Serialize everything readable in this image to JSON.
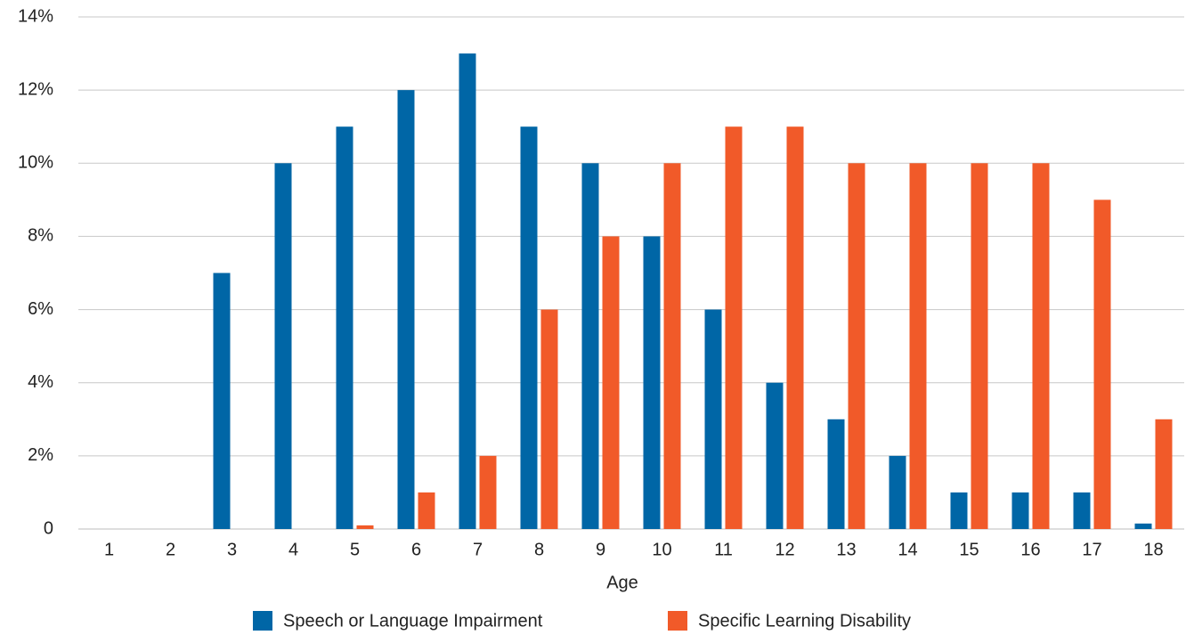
{
  "chart_data": {
    "type": "bar",
    "x_label": "Age",
    "categories": [
      "1",
      "2",
      "3",
      "4",
      "5",
      "6",
      "7",
      "8",
      "9",
      "10",
      "11",
      "12",
      "13",
      "14",
      "15",
      "16",
      "17",
      "18"
    ],
    "series": [
      {
        "name": "Speech or Language Impairment",
        "color": "#0066a6",
        "values": [
          0,
          0,
          7,
          10,
          11,
          12,
          13,
          11,
          10,
          8,
          6,
          4,
          3,
          2,
          1,
          1,
          1,
          0.15
        ]
      },
      {
        "name": "Specific Learning Disability",
        "color": "#f15a29",
        "values": [
          0,
          0,
          0,
          0,
          0.1,
          1,
          2,
          6,
          8,
          10,
          11,
          11,
          10,
          10,
          10,
          10,
          9,
          3
        ]
      }
    ],
    "ylim": [
      0,
      14
    ],
    "yticks": [
      0,
      {
        "value": 2,
        "label": "2%"
      },
      {
        "value": 4,
        "label": "4%"
      },
      {
        "value": 6,
        "label": "6%"
      },
      {
        "value": 8,
        "label": "8%"
      },
      {
        "value": 10,
        "label": "10%"
      },
      {
        "value": 12,
        "label": "12%"
      },
      {
        "value": 14,
        "label": "14%"
      }
    ],
    "grid": true,
    "legend": "bottom"
  }
}
